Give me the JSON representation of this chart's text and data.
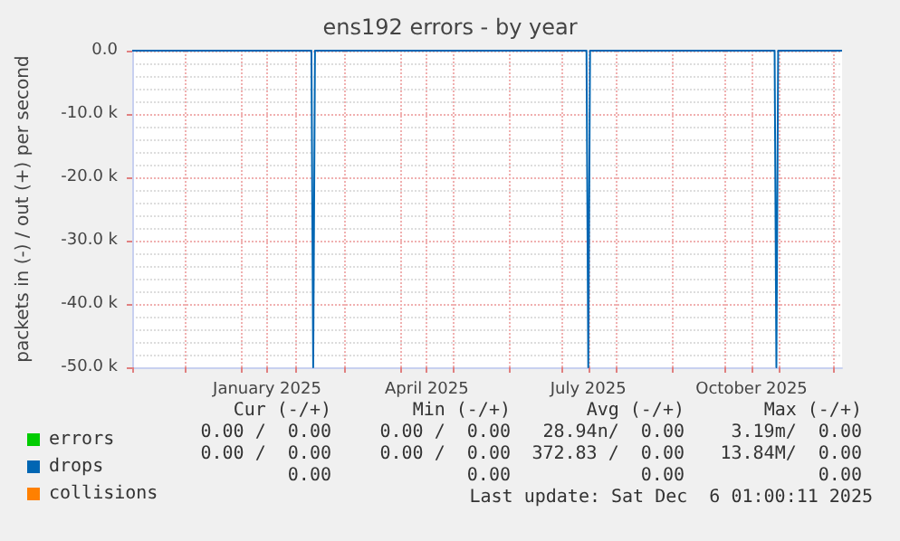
{
  "chart_data": {
    "type": "line",
    "title": "ens192 errors - by year",
    "ylabel": "packets in (-) / out (+) per second",
    "xlim": [
      "2024-11-01",
      "2025-12-06"
    ],
    "xticks": [
      {
        "value": "2024-11-01",
        "label": null
      },
      {
        "value": "2024-12-01",
        "label": null
      },
      {
        "value": "2025-01-01",
        "label": null
      },
      {
        "value": "2025-01-16",
        "label": "January 2025"
      },
      {
        "value": "2025-02-01",
        "label": null
      },
      {
        "value": "2025-03-01",
        "label": null
      },
      {
        "value": "2025-04-01",
        "label": null
      },
      {
        "value": "2025-04-16",
        "label": "April 2025"
      },
      {
        "value": "2025-05-01",
        "label": null
      },
      {
        "value": "2025-06-01",
        "label": null
      },
      {
        "value": "2025-07-01",
        "label": null
      },
      {
        "value": "2025-07-16",
        "label": "July 2025"
      },
      {
        "value": "2025-08-01",
        "label": null
      },
      {
        "value": "2025-09-01",
        "label": null
      },
      {
        "value": "2025-10-01",
        "label": null
      },
      {
        "value": "2025-10-16",
        "label": "October 2025"
      },
      {
        "value": "2025-11-01",
        "label": null
      },
      {
        "value": "2025-12-01",
        "label": null
      }
    ],
    "ylim": [
      -50000,
      0
    ],
    "yticks": [
      {
        "value": 0,
        "label": "0.0"
      },
      {
        "value": -10000,
        "label": "-10.0 k"
      },
      {
        "value": -20000,
        "label": "-20.0 k"
      },
      {
        "value": -30000,
        "label": "-30.0 k"
      },
      {
        "value": -40000,
        "label": "-40.0 k"
      },
      {
        "value": -50000,
        "label": "-50.0 k"
      }
    ],
    "grid": true,
    "legend": "bottom left",
    "marker": "none",
    "line_style": "solid",
    "series": [
      {
        "name": "errors",
        "color": "#00cc00"
      },
      {
        "name": "drops",
        "color": "#0066b3",
        "x": [
          "2024-11-01",
          "2025-02-10",
          "2025-02-11",
          "2025-02-12",
          "2025-07-15",
          "2025-07-16",
          "2025-07-17",
          "2025-10-29",
          "2025-10-30",
          "2025-10-31",
          "2025-12-06"
        ],
        "values": [
          0,
          0,
          -50000,
          0,
          0,
          -50000,
          0,
          0,
          -50000,
          0,
          0
        ]
      },
      {
        "name": "collisions",
        "color": "#ff8000"
      }
    ],
    "annotations": [
      "Cur (-/+)",
      "Min (-/+)",
      "Avg (-/+)",
      "Max (-/+)",
      "0.00 /  0.00",
      "0.00 /  0.00",
      "28.94n/  0.00",
      "3.19m/  0.00",
      "0.00 /  0.00",
      "0.00 /  0.00",
      "372.83 /  0.00",
      "13.84M/  0.00",
      "0.00",
      "0.00",
      "0.00",
      "0.00",
      "Last update: Sat Dec  6 01:00:11 2025"
    ]
  }
}
